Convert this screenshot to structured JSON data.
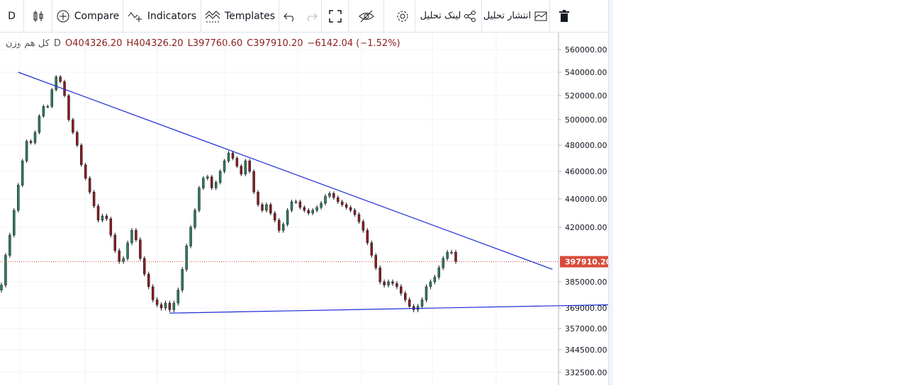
{
  "toolbar": {
    "interval": "D",
    "compare_label": "Compare",
    "indicators_label": "Indicators",
    "templates_label": "Templates",
    "share_link_label": "لینک تحلیل",
    "publish_label": "انتشار تحلیل"
  },
  "legend": {
    "symbol": "کل هم وزن",
    "interval": "D",
    "open": "O404326.20",
    "high": "H404326.20",
    "low": "L397760.60",
    "close": "C397910.20",
    "change": "−6142.04 (−1.52%)"
  },
  "price_axis": {
    "labels": [
      "560000.00",
      "540000.00",
      "520000.00",
      "500000.00",
      "480000.00",
      "460000.00",
      "440000.00",
      "420000.00",
      "385000.00",
      "369000.00",
      "357000.00",
      "344500.00",
      "332500.00"
    ],
    "current_price": "397910.20"
  },
  "colors": {
    "up": "#2e7d5b",
    "down": "#8b1d1d",
    "trendline": "#1d2cd6",
    "current_price_badge": "#d84b3a"
  },
  "chart_data": {
    "type": "candlestick",
    "series": [
      {
        "values": [
          383000,
          402000,
          415000,
          432000,
          450000,
          468000,
          483000,
          482000,
          490000,
          503000,
          511000,
          511000,
          525000,
          536000,
          532000,
          520000,
          500000,
          490000,
          480000,
          465000,
          455000,
          445000,
          435000,
          425000,
          428000,
          426000,
          415000,
          405000,
          398000,
          400000,
          410000,
          418000,
          412000,
          400000,
          390000,
          382000,
          374000,
          371000,
          369000,
          372000,
          368000,
          372000,
          380000,
          393000,
          408000,
          420000,
          432000,
          448000,
          455000,
          456000,
          448000,
          452000,
          460000,
          468000,
          474000,
          470000,
          464000,
          458000,
          468000,
          460000,
          445000,
          436000,
          432000,
          436000,
          430000,
          425000,
          418000,
          422000,
          432000,
          438000,
          438000,
          434000,
          432000,
          430000,
          432000,
          434000,
          437000,
          442000,
          444000,
          441000,
          438000,
          436000,
          434000,
          432000,
          429000,
          424000,
          418000,
          410000,
          402000,
          394000,
          385000,
          383000,
          385000,
          384000,
          382000,
          378000,
          374000,
          370000,
          368000,
          370000,
          374000,
          382000,
          385000,
          388000,
          394000,
          400000,
          404000,
          404000,
          398000
        ]
      }
    ],
    "ylim": [
      325000,
      565000
    ],
    "trendlines": [
      {
        "from": [
          4,
          540000
        ],
        "to": [
          131,
          393000
        ]
      },
      {
        "from": [
          40,
          366000
        ],
        "to": [
          145,
          371000
        ]
      }
    ]
  }
}
